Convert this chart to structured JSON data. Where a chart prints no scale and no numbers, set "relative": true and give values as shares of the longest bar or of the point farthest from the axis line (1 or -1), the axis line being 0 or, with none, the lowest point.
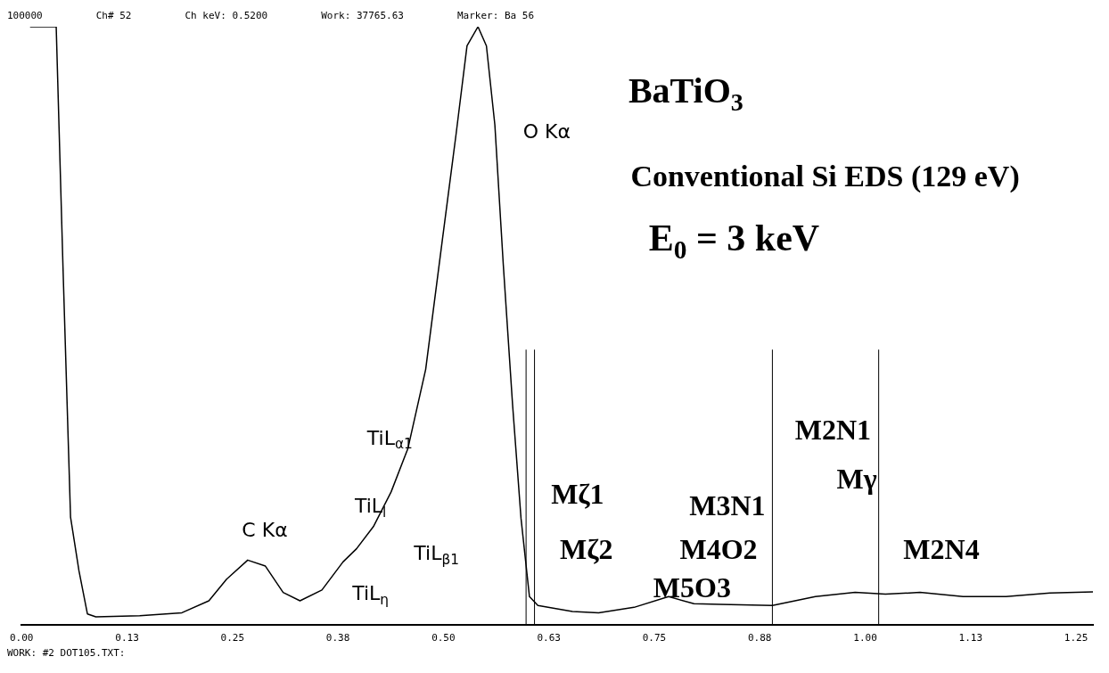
{
  "chart_data": {
    "type": "line",
    "title": "BaTiO$_{3}$",
    "subtitle": "Conventional Si EDS (129 eV)",
    "relative": true,
    "color": "#000000",
    "marker": "none",
    "grid": false,
    "legend": false,
    "tick_labels": "x",
    "x": [
      0.01,
      0.041,
      0.049,
      0.058,
      0.068,
      0.078,
      0.088,
      0.14,
      0.19,
      0.222,
      0.243,
      0.268,
      0.289,
      0.31,
      0.33,
      0.356,
      0.381,
      0.397,
      0.417,
      0.438,
      0.458,
      0.479,
      0.499,
      0.515,
      0.528,
      0.541,
      0.551,
      0.561,
      0.571,
      0.582,
      0.592,
      0.602,
      0.612,
      0.653,
      0.684,
      0.726,
      0.767,
      0.797,
      0.828,
      0.89,
      0.941,
      0.988,
      1.024,
      1.065,
      1.116,
      1.167,
      1.219,
      1.27
    ],
    "values": [
      1,
      1,
      0.6,
      0.18,
      0.09,
      0.018,
      0.013,
      0.015,
      0.02,
      0.04,
      0.076,
      0.108,
      0.098,
      0.054,
      0.04,
      0.058,
      0.105,
      0.127,
      0.164,
      0.222,
      0.295,
      0.427,
      0.646,
      0.82,
      0.968,
      1,
      0.968,
      0.836,
      0.602,
      0.368,
      0.178,
      0.047,
      0.032,
      0.022,
      0.02,
      0.029,
      0.047,
      0.035,
      0.034,
      0.032,
      0.047,
      0.054,
      0.051,
      0.054,
      0.047,
      0.047,
      0.053,
      0.055
    ],
    "xlim": [
      0,
      1.27
    ],
    "xticks": [
      {
        "value": 0,
        "label": "0.00"
      },
      {
        "value": 0.125,
        "label": "0.13"
      },
      0.25,
      {
        "value": 0.375,
        "label": "0.38"
      },
      {
        "value": 0.5,
        "label": "0.50"
      },
      {
        "value": 0.625,
        "label": "0.63"
      },
      0.75,
      {
        "value": 0.875,
        "label": "0.88"
      },
      {
        "value": 1,
        "label": "1.00"
      },
      {
        "value": 1.125,
        "label": "1.13"
      },
      1.25
    ],
    "ref_lines": [
      {
        "axis": "x",
        "value": 0.598
      },
      {
        "axis": "x",
        "value": 0.608
      },
      {
        "axis": "x",
        "value": 0.89
      },
      {
        "axis": "x",
        "value": 1.016
      }
    ],
    "annotations": [
      "E$_{0}$ = 3 keV",
      "100000",
      "Ch# 52",
      "Ch keV: 0.5200",
      "Work: 37765.63",
      "Marker: Ba 56",
      "WORK: #2 DOT105.TXT:",
      "C Kα",
      "O Kα",
      "TiL$_{α1}$",
      "TiL$_{l}$",
      "TiL$_{β1}$",
      "TiL$_{η}$",
      "Mζ1",
      "Mζ2",
      "M2N1",
      "Mγ",
      "M3N1",
      "M4O2",
      "M5O3",
      "M2N4"
    ]
  }
}
